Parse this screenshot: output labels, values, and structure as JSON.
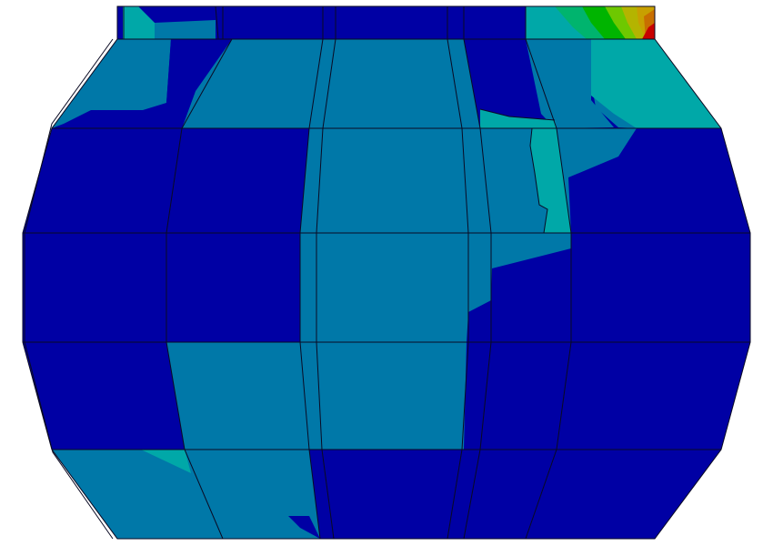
{
  "viewport": {
    "background": "#ffffff"
  },
  "contour_palette": {
    "level_1": "#0000a4",
    "level_2": "#0078a8",
    "level_3": "#00a8a8",
    "level_4": "#00b46e",
    "level_5": "#00b400",
    "level_6": "#6ec800",
    "level_7": "#b4b400",
    "level_8": "#c8a000",
    "level_9": "#c86e00",
    "level_10": "#c80000"
  },
  "mesh_edge_color": "#0a0a23",
  "model": {
    "type": "deformed-barrel-mesh",
    "rows": 5,
    "top_cap_present": true
  }
}
